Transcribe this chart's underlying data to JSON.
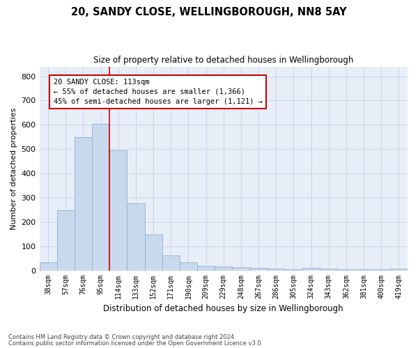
{
  "title1": "20, SANDY CLOSE, WELLINGBOROUGH, NN8 5AY",
  "title2": "Size of property relative to detached houses in Wellingborough",
  "xlabel": "Distribution of detached houses by size in Wellingborough",
  "ylabel": "Number of detached properties",
  "bar_labels": [
    "38sqm",
    "57sqm",
    "76sqm",
    "95sqm",
    "114sqm",
    "133sqm",
    "152sqm",
    "171sqm",
    "190sqm",
    "209sqm",
    "229sqm",
    "248sqm",
    "267sqm",
    "286sqm",
    "305sqm",
    "324sqm",
    "343sqm",
    "362sqm",
    "381sqm",
    "400sqm",
    "419sqm"
  ],
  "bar_heights": [
    33,
    248,
    550,
    605,
    495,
    278,
    147,
    62,
    33,
    20,
    15,
    12,
    10,
    8,
    5,
    10,
    8,
    5,
    5,
    5,
    8
  ],
  "bar_color": "#c9d9ed",
  "bar_edgecolor": "#8aafd4",
  "vline_x_index": 4,
  "vline_color": "#cc0000",
  "annotation_text": "20 SANDY CLOSE: 113sqm\n← 55% of detached houses are smaller (1,366)\n45% of semi-detached houses are larger (1,121) →",
  "annotation_box_color": "#cc0000",
  "annotation_fontsize": 7.5,
  "yticks": [
    0,
    100,
    200,
    300,
    400,
    500,
    600,
    700,
    800
  ],
  "ylim": [
    0,
    840
  ],
  "grid_color": "#c8d4e8",
  "bg_color": "#e8eef8",
  "fig_bg_color": "#ffffff",
  "footer1": "Contains HM Land Registry data © Crown copyright and database right 2024.",
  "footer2": "Contains public sector information licensed under the Open Government Licence v3.0."
}
